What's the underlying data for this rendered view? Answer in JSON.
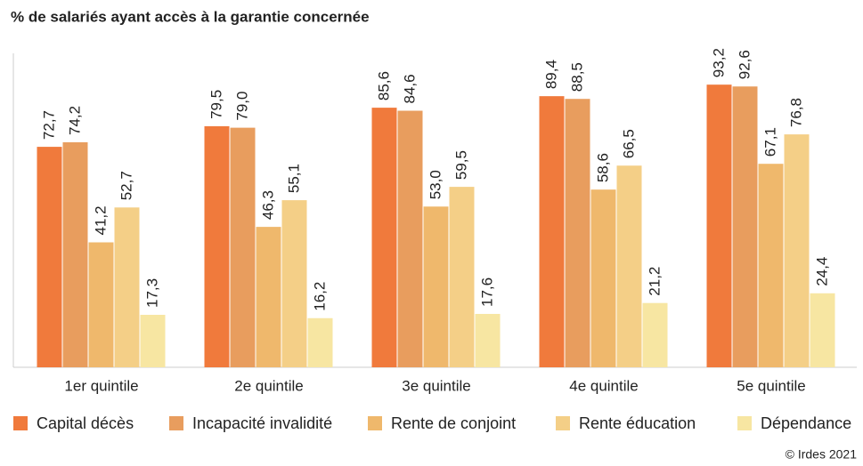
{
  "chart_data": {
    "type": "bar",
    "title": "% de salariés ayant accès à la garantie concernée",
    "categories": [
      "1er quintile",
      "2e quintile",
      "3e quintile",
      "4e quintile",
      "5e quintile"
    ],
    "series": [
      {
        "name": "Capital décès",
        "color": "#f07a3c",
        "values": [
          72.7,
          79.5,
          85.6,
          89.4,
          93.2
        ],
        "value_labels": [
          "72,7",
          "79,5",
          "85,6",
          "89,4",
          "93,2"
        ]
      },
      {
        "name": "Incapacité invalidité",
        "color": "#e89d5e",
        "values": [
          74.2,
          79.0,
          84.6,
          88.5,
          92.6
        ],
        "value_labels": [
          "74,2",
          "79,0",
          "84,6",
          "88,5",
          "92,6"
        ]
      },
      {
        "name": "Rente de conjoint",
        "color": "#efb86c",
        "values": [
          41.2,
          46.3,
          53.0,
          58.6,
          67.1
        ],
        "value_labels": [
          "41,2",
          "46,3",
          "53,0",
          "58,6",
          "67,1"
        ]
      },
      {
        "name": "Rente éducation",
        "color": "#f4cf87",
        "values": [
          52.7,
          55.1,
          59.5,
          66.5,
          76.8
        ],
        "value_labels": [
          "52,7",
          "55,1",
          "59,5",
          "66,5",
          "76,8"
        ]
      },
      {
        "name": "Dépendance",
        "color": "#f7e6a2",
        "values": [
          17.3,
          16.2,
          17.6,
          21.2,
          24.4
        ],
        "value_labels": [
          "17,3",
          "16,2",
          "17,6",
          "21,2",
          "24,4"
        ]
      }
    ],
    "ylim": [
      0,
      100
    ],
    "source": "© Irdes 2021"
  }
}
